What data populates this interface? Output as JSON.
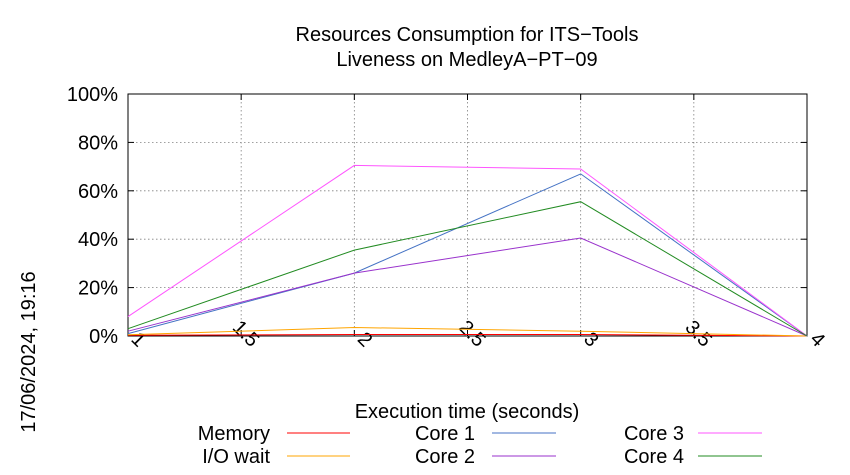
{
  "chart_data": {
    "type": "line",
    "title": "Resources Consumption for ITS−Tools",
    "subtitle": "Liveness on MedleyA−PT−09",
    "xlabel": "Execution time (seconds)",
    "ylabel": "",
    "side_label": "17/06/2024, 19:16",
    "xlim": [
      1,
      4
    ],
    "ylim": [
      0,
      100
    ],
    "x_ticks": [
      "1",
      "1.5",
      "2",
      "2.5",
      "3",
      "3.5",
      "4"
    ],
    "x_tick_values": [
      1,
      1.5,
      2,
      2.5,
      3,
      3.5,
      4
    ],
    "y_ticks": [
      "0%",
      "20%",
      "40%",
      "60%",
      "80%",
      "100%"
    ],
    "y_tick_values": [
      0,
      20,
      40,
      60,
      80,
      100
    ],
    "grid": true,
    "legend_position": "bottom",
    "x": [
      1,
      2,
      3,
      4
    ],
    "series": [
      {
        "name": "Memory",
        "color": "#ff0000",
        "values": [
          0.3,
          0.6,
          0.6,
          0
        ]
      },
      {
        "name": "I/O wait",
        "color": "#ffa500",
        "values": [
          0.5,
          3.5,
          2,
          0
        ]
      },
      {
        "name": "Core 1",
        "color": "#4472c4",
        "values": [
          1,
          26,
          67,
          0
        ]
      },
      {
        "name": "Core 2",
        "color": "#9932cc",
        "values": [
          2,
          26,
          40.5,
          0
        ]
      },
      {
        "name": "Core 3",
        "color": "#ff55ff",
        "values": [
          8,
          70.5,
          69,
          0
        ]
      },
      {
        "name": "Core 4",
        "color": "#228b22",
        "values": [
          3,
          35.5,
          55.5,
          0
        ]
      }
    ]
  }
}
